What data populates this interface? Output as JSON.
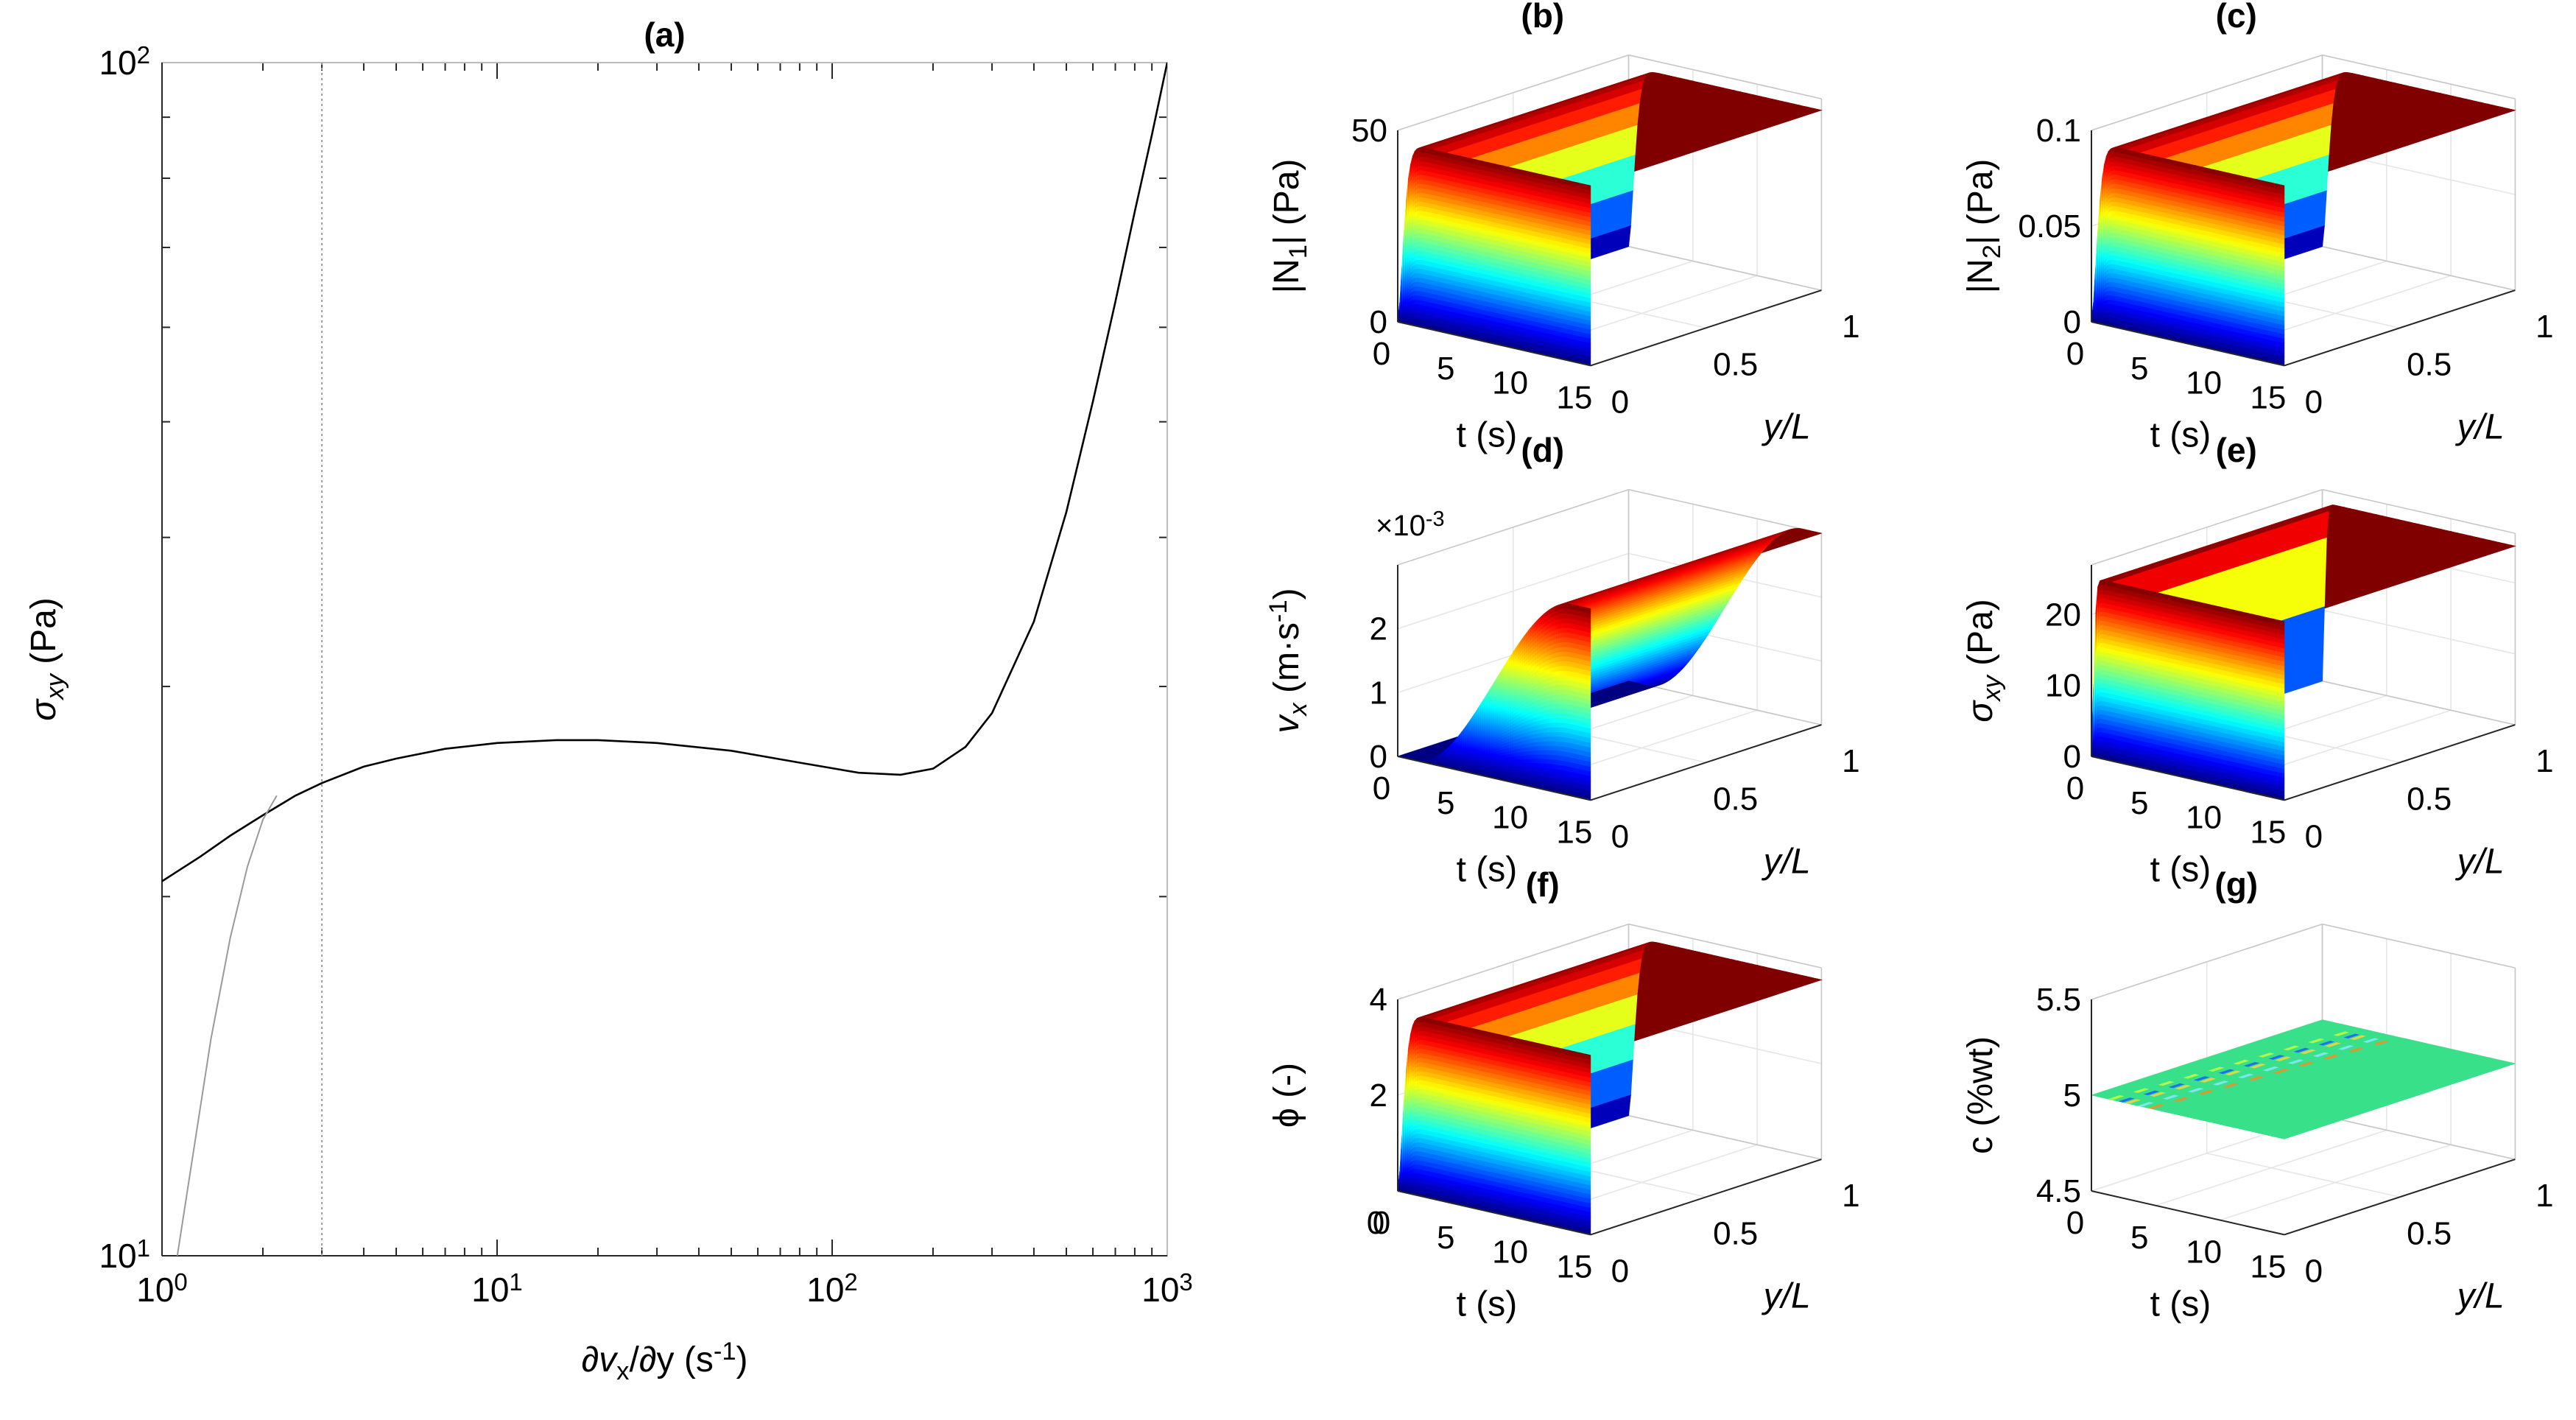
{
  "figure": {
    "panels": [
      "(a)",
      "(b)",
      "(c)",
      "(d)",
      "(e)",
      "(f)",
      "(g)"
    ]
  },
  "chart_data": [
    {
      "id": "a",
      "type": "line",
      "title": "(a)",
      "xscale": "log",
      "yscale": "log",
      "xlim": [
        1,
        1000
      ],
      "ylim": [
        10,
        100
      ],
      "xticks": [
        {
          "v": 1,
          "base": "10",
          "exp": "0"
        },
        {
          "v": 10,
          "base": "10",
          "exp": "1"
        },
        {
          "v": 100,
          "base": "10",
          "exp": "2"
        },
        {
          "v": 1000,
          "base": "10",
          "exp": "3"
        }
      ],
      "yticks": [
        {
          "v": 10,
          "base": "10",
          "exp": "1"
        },
        {
          "v": 100,
          "base": "10",
          "exp": "2"
        }
      ],
      "xlabel_parts": [
        "∂v",
        "x",
        "/∂y (s",
        "-1",
        ")"
      ],
      "ylabel_parts": [
        "σ",
        "xy",
        " (Pa)"
      ],
      "colors": {
        "main": "#000000",
        "aux": "#9a9a9a"
      },
      "series": [
        {
          "name": "flow curve",
          "style": "solid",
          "x": [
            1,
            1.3,
            1.6,
            2,
            2.5,
            3,
            4,
            5,
            7,
            10,
            15,
            20,
            30,
            50,
            80,
            120,
            160,
            200,
            250,
            300,
            400,
            500,
            600,
            700,
            800,
            900,
            1000
          ],
          "y": [
            20.6,
            21.6,
            22.5,
            23.4,
            24.3,
            24.9,
            25.7,
            26.1,
            26.6,
            26.9,
            27.05,
            27.05,
            26.9,
            26.5,
            25.9,
            25.4,
            25.3,
            25.6,
            26.7,
            28.5,
            34,
            42,
            52,
            63,
            75,
            87,
            100
          ]
        },
        {
          "name": "branch",
          "style": "solid-grey",
          "x": [
            1.08,
            1.2,
            1.4,
            1.6,
            1.8,
            2.0,
            2.2
          ],
          "y": [
            9.5,
            11.5,
            15.2,
            18.5,
            21.2,
            23.2,
            24.3
          ]
        },
        {
          "name": "critical rate",
          "style": "dotted-vertical",
          "x": [
            3,
            3
          ],
          "y": [
            10,
            100
          ]
        }
      ]
    },
    {
      "id": "b",
      "type": "surface",
      "title": "(b)",
      "tlim": [
        0,
        15
      ],
      "tticks": [
        "0",
        "5",
        "10",
        "15"
      ],
      "ylim": [
        0,
        1
      ],
      "yticks": [
        "0",
        "0.5",
        "1"
      ],
      "zlim": [
        0,
        50
      ],
      "zticks": [
        {
          "v": 0,
          "label": "0"
        },
        {
          "v": 50,
          "label": "50"
        }
      ],
      "zlabel_parts": [
        "|N",
        "1",
        "| (Pa)"
      ],
      "xlabel": "t (s)",
      "ylabel": "y/L",
      "z_plateau": 47,
      "rise_time": 1.0,
      "color_range": [
        0,
        47
      ]
    },
    {
      "id": "c",
      "type": "surface",
      "title": "(c)",
      "tlim": [
        0,
        15
      ],
      "tticks": [
        "0",
        "5",
        "10",
        "15"
      ],
      "ylim": [
        0,
        1
      ],
      "yticks": [
        "0",
        "0.5",
        "1"
      ],
      "zlim": [
        0,
        0.1
      ],
      "zticks": [
        {
          "v": 0,
          "label": "0"
        },
        {
          "v": 0.05,
          "label": "0.05"
        },
        {
          "v": 0.1,
          "label": "0.1"
        }
      ],
      "zlabel_parts": [
        "|N",
        "2",
        "| (Pa)"
      ],
      "xlabel": "t (s)",
      "ylabel": "y/L",
      "z_plateau": 0.094,
      "rise_time": 1.0,
      "color_range": [
        0,
        0.094
      ]
    },
    {
      "id": "d",
      "type": "surface",
      "title": "(d)",
      "tlim": [
        0,
        15
      ],
      "tticks": [
        "0",
        "5",
        "10",
        "15"
      ],
      "ylim": [
        0,
        1
      ],
      "yticks": [
        "0",
        "0.5",
        "1"
      ],
      "zlim": [
        0,
        0.003
      ],
      "zticks": [
        {
          "v": 0,
          "label": "0"
        },
        {
          "v": 0.001,
          "label": "1"
        },
        {
          "v": 0.002,
          "label": "2"
        }
      ],
      "zexp_parts": [
        "×10",
        "-3"
      ],
      "zlabel_parts": [
        "v",
        "x",
        " (m·s",
        "-1",
        ")"
      ],
      "xlabel": "t (s)",
      "ylabel": "y/L",
      "z_plateau": 0.003,
      "ramp_start": 1.5,
      "ramp_end": 13.5,
      "color_range": [
        0,
        0.003
      ]
    },
    {
      "id": "e",
      "type": "surface",
      "title": "(e)",
      "tlim": [
        0,
        15
      ],
      "tticks": [
        "0",
        "5",
        "10",
        "15"
      ],
      "ylim": [
        0,
        1
      ],
      "yticks": [
        "0",
        "0.5",
        "1"
      ],
      "zlim": [
        0,
        27
      ],
      "zticks": [
        {
          "v": 0,
          "label": "0"
        },
        {
          "v": 10,
          "label": "10"
        },
        {
          "v": 20,
          "label": "20"
        }
      ],
      "zlabel_parts": [
        "σ",
        "xy",
        " (Pa)"
      ],
      "xlabel": "t (s)",
      "ylabel": "y/L",
      "z_plateau": 25.2,
      "rise_time": 0.4,
      "color_range": [
        0,
        25
      ]
    },
    {
      "id": "f",
      "type": "surface",
      "title": "(f)",
      "tlim": [
        0,
        15
      ],
      "tticks": [
        "0",
        "5",
        "10",
        "15"
      ],
      "ylim": [
        0,
        1
      ],
      "yticks": [
        "0",
        "0.5",
        "1"
      ],
      "zlim": [
        0,
        4
      ],
      "zticks": [
        {
          "v": 2,
          "label": "2"
        },
        {
          "v": 4,
          "label": "4"
        }
      ],
      "zlabel_parts": [
        "ϕ (-)"
      ],
      "xlabel": "t (s)",
      "ylabel": "y/L",
      "z_plateau": 3.75,
      "rise_time": 1.0,
      "color_range": [
        0,
        3.75
      ],
      "corner_label": "0"
    },
    {
      "id": "g",
      "type": "surface",
      "title": "(g)",
      "tlim": [
        0,
        15
      ],
      "tticks": [
        "0",
        "5",
        "10",
        "15"
      ],
      "ylim": [
        0,
        1
      ],
      "yticks": [
        "0",
        "0.5",
        "1"
      ],
      "zlim": [
        4.5,
        5.5
      ],
      "zticks": [
        {
          "v": 4.5,
          "label": "4.5"
        },
        {
          "v": 5,
          "label": "5"
        },
        {
          "v": 5.5,
          "label": "5.5"
        }
      ],
      "zlabel_parts": [
        "c (%wt)"
      ],
      "xlabel": "t (s)",
      "ylabel": "y/L",
      "z_plateau": 5.0,
      "flat": true,
      "color_range": [
        4.8,
        5.2
      ]
    }
  ]
}
